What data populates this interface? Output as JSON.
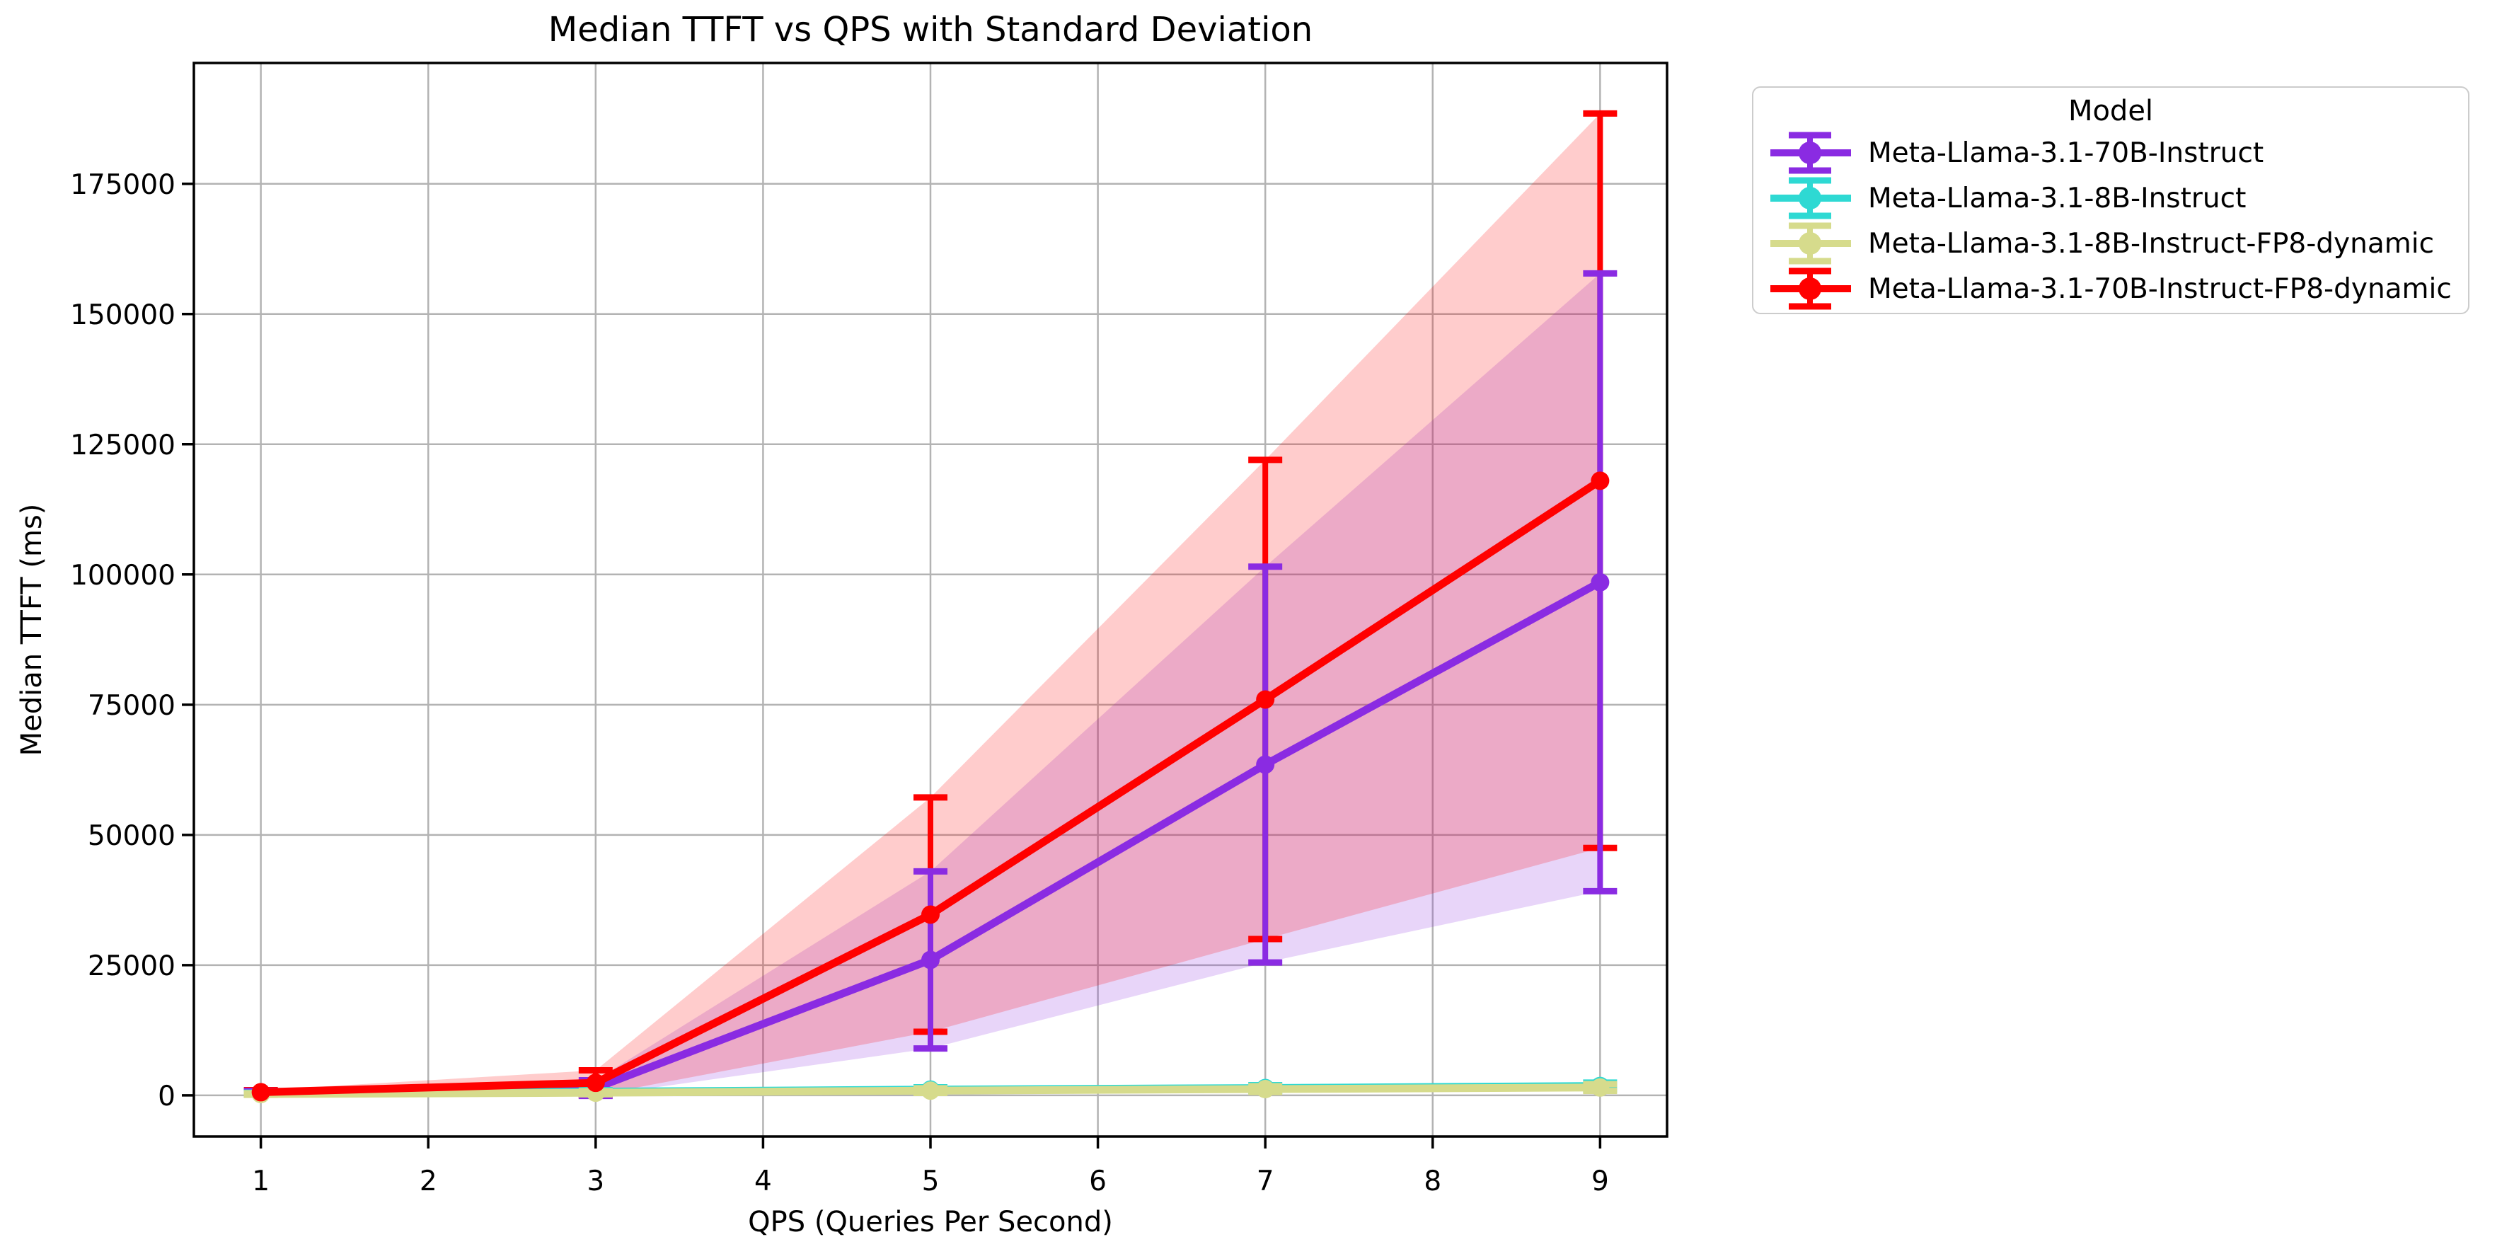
{
  "figure": {
    "background": "#ffffff"
  },
  "chart_data": {
    "type": "line",
    "title": "Median TTFT vs QPS with Standard Deviation",
    "xlabel": "QPS (Queries Per Second)",
    "ylabel": "Median TTFT (ms)",
    "legend_title": "Model",
    "legend_position": "outside-upper-right",
    "grid": true,
    "band_meaning": "mean ± 1 standard deviation, fill alpha 0.2",
    "x": [
      1,
      3,
      5,
      7,
      9
    ],
    "xticks": [
      1,
      2,
      3,
      4,
      5,
      6,
      7,
      8,
      9
    ],
    "yticks": [
      0,
      25000,
      50000,
      75000,
      100000,
      125000,
      150000,
      175000
    ],
    "xlim": [
      0.6,
      9.4
    ],
    "ylim": [
      -7900,
      198200
    ],
    "series": [
      {
        "name": "Meta-Llama-3.1-70B-Instruct",
        "color": "#8A2BE2",
        "median_ttft_ms": [
          500,
          1400,
          26000,
          63500,
          98500
        ],
        "std_ms": [
          350,
          1500,
          17000,
          38000,
          59300
        ]
      },
      {
        "name": "Meta-Llama-3.1-8B-Instruct",
        "color": "#2ED9D3",
        "median_ttft_ms": [
          350,
          700,
          1100,
          1400,
          1800
        ],
        "std_ms": [
          150,
          300,
          450,
          550,
          650
        ]
      },
      {
        "name": "Meta-Llama-3.1-8B-Instruct-FP8-dynamic",
        "color": "#D6DB8C",
        "median_ttft_ms": [
          250,
          500,
          900,
          1200,
          1500
        ],
        "std_ms": [
          150,
          300,
          450,
          550,
          650
        ]
      },
      {
        "name": "Meta-Llama-3.1-70B-Instruct-FP8-dynamic",
        "color": "#FF0000",
        "median_ttft_ms": [
          600,
          2400,
          34700,
          76000,
          118000
        ],
        "std_ms": [
          400,
          2400,
          22500,
          46000,
          70500
        ]
      }
    ],
    "styles": {
      "grid_color": "#b3b3b3",
      "axis_color": "#000000",
      "text_color": "#000000",
      "band_alpha": 0.2
    }
  }
}
